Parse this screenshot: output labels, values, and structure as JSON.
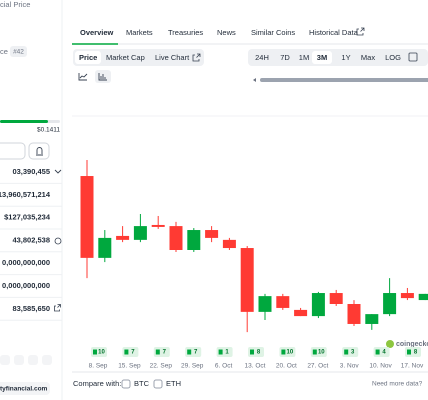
{
  "sidebar": {
    "title": "cial Price",
    "rank_label": "ce",
    "rank": "#42",
    "price": "$0.1411",
    "stats": [
      "03,390,455",
      "13,960,571,214",
      "$127,035,234",
      "43,802,538",
      "0,000,000,000",
      "0,000,000,000",
      "83,585,650"
    ],
    "website": "tyfinancial.com"
  },
  "tabs": [
    "Overview",
    "Markets",
    "Treasuries",
    "News",
    "Similar Coins",
    "Historical Data"
  ],
  "chart_buttons": [
    "Price",
    "Market Cap",
    "Live Chart"
  ],
  "ranges": [
    "24H",
    "7D",
    "1M",
    "3M",
    "1Y",
    "Max",
    "LOG"
  ],
  "chart_data": {
    "type": "candlestick",
    "open": [
      0.1783,
      0.1492,
      0.157,
      0.1556,
      0.1609,
      0.1605,
      0.152,
      0.1591,
      0.1556,
      0.1527,
      0.13,
      0.1356,
      0.1307,
      0.1285,
      0.1367,
      0.1328,
      0.1257,
      0.1292,
      0.1367,
      0.1342
    ],
    "high": [
      0.184,
      0.1591,
      0.1605,
      0.1648,
      0.1641,
      0.162,
      0.1598,
      0.1605,
      0.1563,
      0.1534,
      0.1364,
      0.1364,
      0.1314,
      0.1371,
      0.1378,
      0.1342,
      0.1292,
      0.142,
      0.1385,
      0.1364
    ],
    "low": [
      0.142,
      0.1477,
      0.1548,
      0.1548,
      0.1595,
      0.1513,
      0.1513,
      0.1548,
      0.152,
      0.1228,
      0.1271,
      0.1307,
      0.1285,
      0.1278,
      0.1321,
      0.125,
      0.1236,
      0.1285,
      0.1342,
      0.1342
    ],
    "close": [
      0.1492,
      0.1563,
      0.1556,
      0.1605,
      0.1602,
      0.152,
      0.1591,
      0.1563,
      0.1527,
      0.13,
      0.1356,
      0.1314,
      0.1285,
      0.1367,
      0.1328,
      0.1257,
      0.1292,
      0.1367,
      0.1349,
      0.1364
    ],
    "up_color": "#00a83e",
    "down_color": "#ff3a33",
    "ylim": [
      0.12,
      0.2
    ],
    "x_labels": [
      "8. Sep",
      "15. Sep",
      "22. Sep",
      "29. Sep",
      "6. Oct",
      "13. Oct",
      "20. Oct",
      "27. Oct",
      "3. Nov",
      "10. Nov",
      "17. Nov"
    ],
    "watermark": "coingecko"
  },
  "badges": [
    10,
    7,
    7,
    7,
    1,
    8,
    10,
    10,
    3,
    4,
    8
  ],
  "compare": {
    "label": "Compare with:",
    "options": [
      "BTC",
      "ETH"
    ],
    "more": "Need more data?"
  }
}
